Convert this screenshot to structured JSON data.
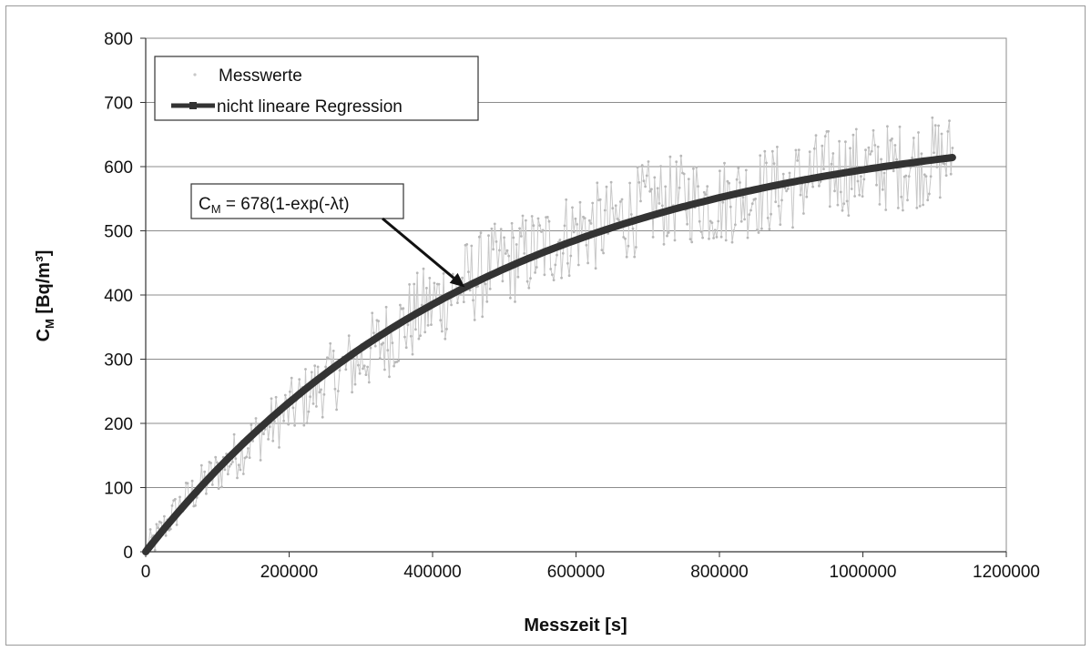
{
  "chart_data": {
    "type": "scatter",
    "title": "",
    "xlabel": "Messzeit [s]",
    "ylabel": {
      "main": "C",
      "sub": "M",
      "rest": " [Bq/m³]"
    },
    "xlim": [
      0,
      1200000
    ],
    "ylim": [
      0,
      800
    ],
    "x_ticks": [
      0,
      200000,
      400000,
      600000,
      800000,
      1000000,
      1200000
    ],
    "y_ticks": [
      0,
      100,
      200,
      300,
      400,
      500,
      600,
      700,
      800
    ],
    "grid": "horizontal",
    "legend": {
      "placement": "top-left",
      "entries": [
        "Messwerte",
        "nicht lineare Regression"
      ]
    },
    "annotation": {
      "text_main": "C",
      "text_sub": "M",
      "text_rest": " = 678(1-exp(-λt)",
      "arrow_target": [
        445000,
        412
      ]
    },
    "series": [
      {
        "name": "Messwerte",
        "kind": "noisy-measurements",
        "color": "#c8c8c8",
        "x_range": [
          0,
          1125000
        ],
        "approx_points": [
          [
            0,
            0
          ],
          [
            50000,
            75
          ],
          [
            100000,
            125
          ],
          [
            150000,
            175
          ],
          [
            200000,
            220
          ],
          [
            250000,
            265
          ],
          [
            300000,
            300
          ],
          [
            350000,
            345
          ],
          [
            400000,
            385
          ],
          [
            450000,
            420
          ],
          [
            500000,
            450
          ],
          [
            550000,
            470
          ],
          [
            600000,
            500
          ],
          [
            650000,
            510
          ],
          [
            700000,
            540
          ],
          [
            750000,
            550
          ],
          [
            800000,
            545
          ],
          [
            850000,
            560
          ],
          [
            900000,
            570
          ],
          [
            950000,
            590
          ],
          [
            1000000,
            595
          ],
          [
            1050000,
            600
          ],
          [
            1100000,
            610
          ],
          [
            1125000,
            615
          ]
        ],
        "spread": 70
      },
      {
        "name": "nicht lineare Regression",
        "kind": "exponential-fit",
        "color": "#333333",
        "a": 678,
        "lambda": 2.1e-06,
        "x_range": [
          0,
          1125000
        ]
      }
    ]
  }
}
